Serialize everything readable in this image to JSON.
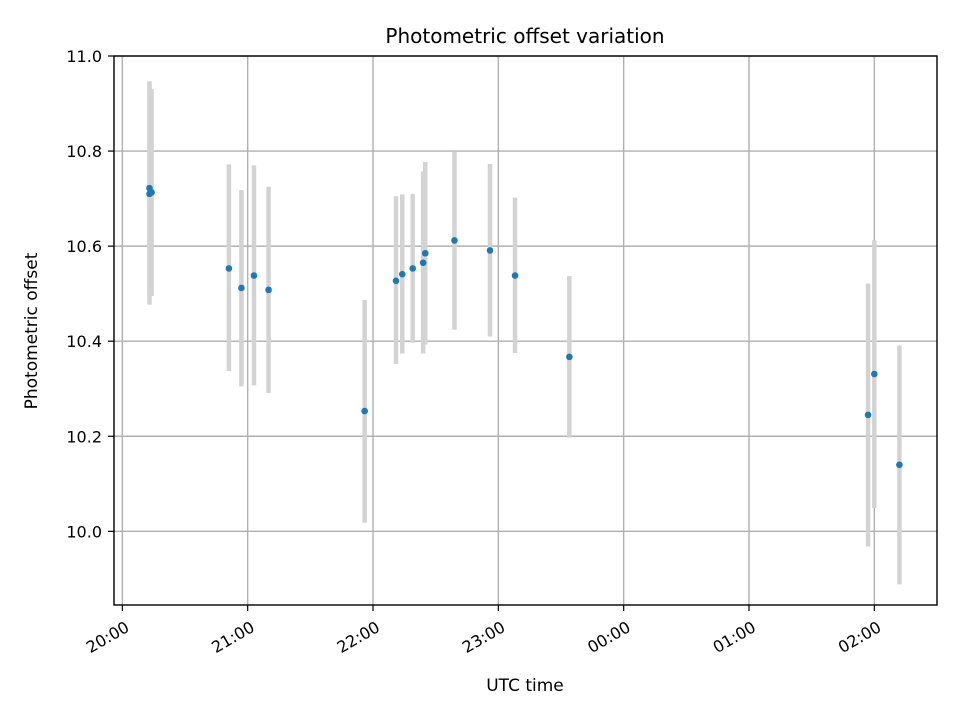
{
  "chart_data": {
    "type": "scatter",
    "title": "Photometric offset variation",
    "xlabel": "UTC time",
    "ylabel": "Photometric offset",
    "x_unit": "UTC time (hours since 20:00)",
    "xlim": [
      "19:56",
      "02:30"
    ],
    "ylim": [
      9.845,
      11.0
    ],
    "x_ticks": [
      "20:00",
      "21:00",
      "22:00",
      "23:00",
      "00:00",
      "01:00",
      "02:00"
    ],
    "y_ticks": [
      "10.0",
      "10.2",
      "10.4",
      "10.6",
      "10.8",
      "11.0"
    ],
    "grid": true,
    "colors": {
      "marker": "#1f77b4",
      "errorbar": "#d3d3d3"
    },
    "points": [
      {
        "t": "20:13",
        "y": 10.722,
        "lo": 10.497,
        "hi": 10.947
      },
      {
        "t": "20:13",
        "y": 10.71,
        "lo": 10.477,
        "hi": 10.943
      },
      {
        "t": "20:14",
        "y": 10.713,
        "lo": 10.495,
        "hi": 10.93
      },
      {
        "t": "20:51",
        "y": 10.553,
        "lo": 10.337,
        "hi": 10.772
      },
      {
        "t": "20:57",
        "y": 10.512,
        "lo": 10.305,
        "hi": 10.718
      },
      {
        "t": "21:03",
        "y": 10.538,
        "lo": 10.307,
        "hi": 10.77
      },
      {
        "t": "21:10",
        "y": 10.508,
        "lo": 10.291,
        "hi": 10.725
      },
      {
        "t": "21:56",
        "y": 10.253,
        "lo": 10.018,
        "hi": 10.487
      },
      {
        "t": "22:11",
        "y": 10.527,
        "lo": 10.352,
        "hi": 10.705
      },
      {
        "t": "22:14",
        "y": 10.541,
        "lo": 10.374,
        "hi": 10.709
      },
      {
        "t": "22:19",
        "y": 10.553,
        "lo": 10.397,
        "hi": 10.71
      },
      {
        "t": "22:24",
        "y": 10.565,
        "lo": 10.374,
        "hi": 10.757
      },
      {
        "t": "22:25",
        "y": 10.585,
        "lo": 10.393,
        "hi": 10.777
      },
      {
        "t": "22:39",
        "y": 10.612,
        "lo": 10.424,
        "hi": 10.799
      },
      {
        "t": "22:56",
        "y": 10.591,
        "lo": 10.41,
        "hi": 10.773
      },
      {
        "t": "23:08",
        "y": 10.538,
        "lo": 10.375,
        "hi": 10.702
      },
      {
        "t": "23:34",
        "y": 10.367,
        "lo": 10.197,
        "hi": 10.537
      },
      {
        "t": "01:57",
        "y": 10.245,
        "lo": 9.968,
        "hi": 10.521
      },
      {
        "t": "02:00",
        "y": 10.331,
        "lo": 10.049,
        "hi": 10.612
      },
      {
        "t": "02:12",
        "y": 10.14,
        "lo": 9.888,
        "hi": 10.391
      }
    ]
  }
}
